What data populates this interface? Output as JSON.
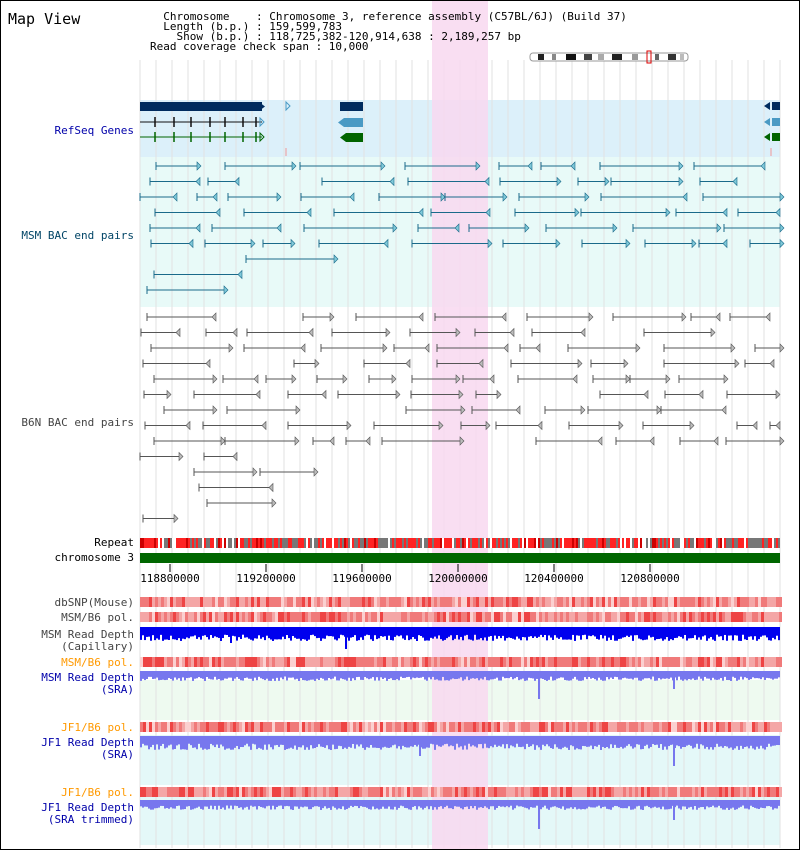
{
  "view_title": "Map View",
  "info_lines": [
    "  Chromosome    : Chromosome 3, reference assembly (C57BL/6J) (Build 37)",
    "  Length (b.p.) : 159,599,783",
    "    Show (b.p.) : 118,725,382-120,914,638 : 2,189,257 bp",
    "Read coverage check span : 10,000"
  ],
  "tracks": {
    "refseq": {
      "label": "RefSeq Genes",
      "color": "#0000aa"
    },
    "msm_bac": {
      "label": "MSM BAC end pairs",
      "color": "#004466"
    },
    "b6n_bac": {
      "label": "B6N BAC end pairs",
      "color": "#444444"
    },
    "repeat": {
      "label": "Repeat",
      "color": "#000000"
    },
    "chromosome": {
      "label": "chromosome 3",
      "color": "#000000"
    },
    "dbsnp": {
      "label": "dbSNP(Mouse)",
      "color": "#444444"
    },
    "msm_pol1": {
      "label": "MSM/B6 pol.",
      "color": "#444444"
    },
    "msm_depth_cap": {
      "label": "MSM Read Depth\n(Capillary)",
      "color": "#444444"
    },
    "msm_pol2": {
      "label": "MSM/B6 pol.",
      "color": "#ff9900"
    },
    "msm_depth_sra": {
      "label": "MSM Read Depth\n(SRA)",
      "color": "#0000aa"
    },
    "jf1_pol1": {
      "label": "JF1/B6 pol.",
      "color": "#ff9900"
    },
    "jf1_depth_sra": {
      "label": "JF1 Read Depth\n(SRA)",
      "color": "#0000aa"
    },
    "jf1_pol2": {
      "label": "JF1/B6 pol.",
      "color": "#ff9900"
    },
    "jf1_depth_trim": {
      "label": "JF1 Read Depth\n(SRA trimmed)",
      "color": "#0000aa"
    }
  },
  "ruler": {
    "ticks": [
      "118800000",
      "119200000",
      "119600000",
      "120000000",
      "120400000",
      "120800000"
    ]
  },
  "colors": {
    "refseq_bg": "#dcf0fa",
    "bac_bg": "#e8faf8",
    "highlight": "#f8d8f0",
    "gene_dark": "#002b5e",
    "gene_mid": "#4a9ac4",
    "gene_green": "#006400",
    "chrom_green": "#006600",
    "msm_bac_line": "#1a6a8a",
    "b6n_bac_line": "#555555",
    "depth_cap": "#0000ee",
    "depth_sra": "#7777ee",
    "pol_red": "#ee4444"
  }
}
